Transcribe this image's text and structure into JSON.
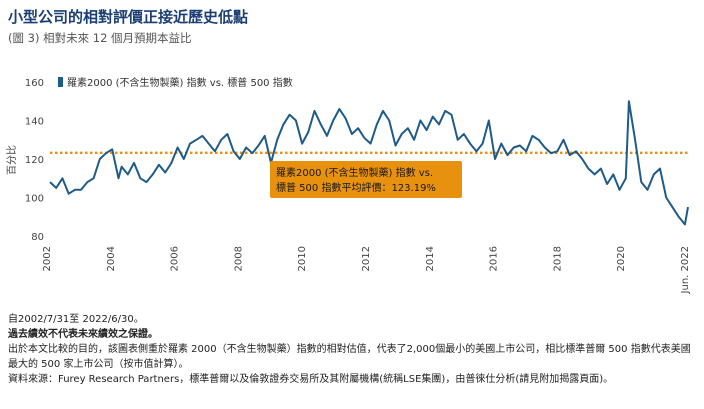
{
  "header": {
    "title": "小型公司的相對評價正接近歷史低點",
    "subtitle": "(圖 3) 相對未來 12 個月預期本益比"
  },
  "chart_data": {
    "type": "line",
    "ylabel": "百分比",
    "ylim": [
      80,
      160
    ],
    "yticks": [
      80,
      100,
      120,
      140,
      160
    ],
    "xlim": [
      2002.0,
      2022.5
    ],
    "xticks": [
      "2002",
      "2004",
      "2006",
      "2008",
      "2010",
      "2012",
      "2014",
      "2016",
      "2018",
      "2020",
      "Jun. 2022"
    ],
    "legend_position": "top-left",
    "series": [
      {
        "name": "羅素2000 (不含生物製藥) 指數 vs. 標普 500 指數",
        "color": "#1f5b87",
        "x": [
          2002.0,
          2002.2,
          2002.4,
          2002.6,
          2002.8,
          2003.0,
          2003.2,
          2003.4,
          2003.6,
          2003.8,
          2004.0,
          2004.2,
          2004.3,
          2004.5,
          2004.7,
          2004.9,
          2005.1,
          2005.3,
          2005.5,
          2005.7,
          2005.9,
          2006.1,
          2006.3,
          2006.5,
          2006.7,
          2006.9,
          2007.1,
          2007.3,
          2007.5,
          2007.7,
          2007.9,
          2008.1,
          2008.3,
          2008.5,
          2008.7,
          2008.9,
          2009.1,
          2009.3,
          2009.5,
          2009.7,
          2009.9,
          2010.1,
          2010.3,
          2010.5,
          2010.7,
          2010.9,
          2011.1,
          2011.3,
          2011.5,
          2011.7,
          2011.9,
          2012.1,
          2012.3,
          2012.5,
          2012.7,
          2012.9,
          2013.1,
          2013.3,
          2013.5,
          2013.7,
          2013.9,
          2014.1,
          2014.3,
          2014.5,
          2014.7,
          2014.9,
          2015.1,
          2015.3,
          2015.5,
          2015.7,
          2015.9,
          2016.1,
          2016.3,
          2016.5,
          2016.7,
          2016.9,
          2017.1,
          2017.3,
          2017.5,
          2017.7,
          2017.9,
          2018.1,
          2018.3,
          2018.5,
          2018.7,
          2018.9,
          2019.1,
          2019.3,
          2019.5,
          2019.7,
          2019.9,
          2020.1,
          2020.3,
          2020.5,
          2020.6,
          2020.8,
          2021.0,
          2021.2,
          2021.4,
          2021.6,
          2021.8,
          2022.0,
          2022.2,
          2022.4,
          2022.5
        ],
        "y": [
          108,
          105,
          110,
          102,
          104,
          104,
          108,
          110,
          120,
          123,
          125,
          110,
          116,
          112,
          118,
          110,
          108,
          112,
          117,
          113,
          118,
          126,
          120,
          128,
          130,
          132,
          128,
          124,
          130,
          133,
          124,
          120,
          126,
          123,
          127,
          132,
          118,
          130,
          138,
          143,
          140,
          128,
          134,
          145,
          138,
          132,
          140,
          146,
          141,
          133,
          136,
          131,
          128,
          138,
          145,
          140,
          127,
          133,
          136,
          130,
          140,
          135,
          142,
          138,
          145,
          143,
          130,
          133,
          128,
          124,
          128,
          140,
          120,
          128,
          122,
          126,
          127,
          124,
          132,
          130,
          126,
          123,
          124,
          130,
          122,
          124,
          120,
          115,
          112,
          115,
          107,
          112,
          104,
          110,
          150,
          130,
          108,
          104,
          112,
          115,
          100,
          95,
          90,
          86,
          95
        ]
      }
    ],
    "average_line": {
      "value": 123.19,
      "color": "#e8910f"
    },
    "annotation": {
      "line1": "羅素2000 (不含生物製藥) 指數 vs.",
      "line2": "標普 500 指數平均評價：123.19%"
    }
  },
  "notes": {
    "date_range": "自2002/7/31至 2022/6/30。",
    "disclaimer": "過去績效不代表未來績效之保證。",
    "comparison": "出於本文比較的目的，該圖表側重於羅素 2000（不含生物製藥）指數的相對估值，代表了2,000個最小的美國上市公司，相比標準普爾 500 指數代表美國最大的 500 家上市公司（按市值計算）。",
    "source": "資料來源：Furey Research Partners，標準普爾以及倫敦證券交易所及其附屬機構(統稱LSE集團)，由普徠仕分析(請見附加揭露頁面)。"
  }
}
